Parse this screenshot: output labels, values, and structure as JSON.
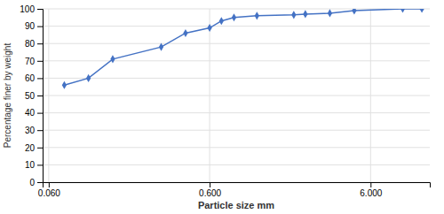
{
  "chart_data": {
    "type": "line",
    "xlabel": "Particle size mm",
    "ylabel": "Percentage finer by weight",
    "x": [
      0.075,
      0.106,
      0.15,
      0.3,
      0.425,
      0.6,
      0.71,
      0.85,
      1.18,
      2.0,
      2.36,
      3.35,
      4.75,
      9.5,
      12.5
    ],
    "values": [
      56,
      60,
      71,
      78,
      86,
      89,
      93,
      95,
      96,
      96.5,
      97,
      97.5,
      99,
      100,
      100
    ],
    "color": "#4472c4",
    "marker": "diamond",
    "log": "x",
    "xlim": [
      0.055,
      14.0
    ],
    "xticks": [
      {
        "value": 0.06,
        "label": "0.060"
      },
      {
        "value": 0.6,
        "label": "0.600"
      },
      {
        "value": 6.0,
        "label": "6.000"
      }
    ],
    "ylim": [
      0,
      100
    ],
    "yticks": [
      0,
      10,
      20,
      30,
      40,
      50,
      60,
      70,
      80,
      90,
      100
    ],
    "grid": true
  }
}
